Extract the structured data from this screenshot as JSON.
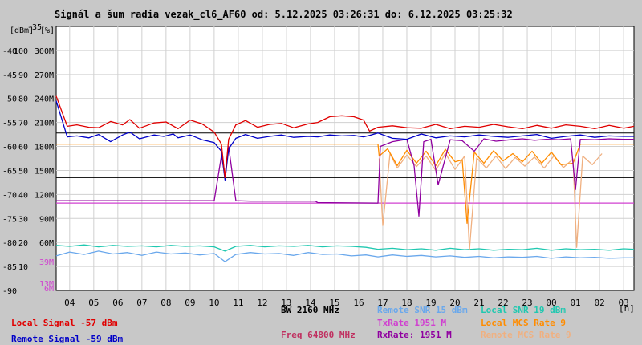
{
  "chart_data": {
    "type": "line",
    "title": "Signál a šum radia vezak_cl6_AF60 od: 5.12.2025 03:26:31 do: 6.12.2025 03:25:32",
    "axis_units_dbm": "[dBm]",
    "axis_units_pct": "[%]",
    "x_unit": "[h]",
    "ylim_dbm": [
      -90,
      -35
    ],
    "y_dbm_ticks": [
      -35,
      -40,
      -45,
      -50,
      -55,
      -60,
      -65,
      -70,
      -75,
      -80,
      -85,
      -90
    ],
    "y_pct_ticks": [
      {
        "dbm": -40,
        "label": "100"
      },
      {
        "dbm": -45,
        "label": "90"
      },
      {
        "dbm": -50,
        "label": "80"
      },
      {
        "dbm": -55,
        "label": "70"
      },
      {
        "dbm": -60,
        "label": "60"
      },
      {
        "dbm": -65,
        "label": "50"
      },
      {
        "dbm": -70,
        "label": "40"
      },
      {
        "dbm": -75,
        "label": "30"
      },
      {
        "dbm": -80,
        "label": "20"
      },
      {
        "dbm": -85,
        "label": "10"
      }
    ],
    "y_rate_ticks": [
      {
        "dbm": -40,
        "label": "300M"
      },
      {
        "dbm": -45,
        "label": "270M"
      },
      {
        "dbm": -50,
        "label": "240M"
      },
      {
        "dbm": -55,
        "label": "210M"
      },
      {
        "dbm": -60,
        "label": "180M"
      },
      {
        "dbm": -65,
        "label": "150M"
      },
      {
        "dbm": -70,
        "label": "120M"
      },
      {
        "dbm": -75,
        "label": "90M"
      },
      {
        "dbm": -80,
        "label": "60M"
      }
    ],
    "y_extra_ticks": [
      {
        "dbm": -84,
        "label": "39M",
        "color": "#d040d0"
      },
      {
        "dbm": -88.5,
        "label": "13M",
        "color": "#d040d0"
      },
      {
        "dbm": -89.5,
        "label": "6M",
        "color": "#d040d0"
      }
    ],
    "xlim_hours": [
      3.44,
      27.43
    ],
    "x_ticks": [
      {
        "h": 4,
        "label": "04"
      },
      {
        "h": 5,
        "label": "05"
      },
      {
        "h": 6,
        "label": "06"
      },
      {
        "h": 7,
        "label": "07"
      },
      {
        "h": 8,
        "label": "08"
      },
      {
        "h": 9,
        "label": "09"
      },
      {
        "h": 10,
        "label": "10"
      },
      {
        "h": 11,
        "label": "11"
      },
      {
        "h": 12,
        "label": "12"
      },
      {
        "h": 13,
        "label": "13"
      },
      {
        "h": 14,
        "label": "14"
      },
      {
        "h": 15,
        "label": "15"
      },
      {
        "h": 16,
        "label": "16"
      },
      {
        "h": 17,
        "label": "17"
      },
      {
        "h": 18,
        "label": "18"
      },
      {
        "h": 19,
        "label": "19"
      },
      {
        "h": 20,
        "label": "20"
      },
      {
        "h": 21,
        "label": "21"
      },
      {
        "h": 22,
        "label": "22"
      },
      {
        "h": 23,
        "label": "23"
      },
      {
        "h": 24,
        "label": "00"
      },
      {
        "h": 25,
        "label": "01"
      },
      {
        "h": 26,
        "label": "02"
      },
      {
        "h": 27,
        "label": "03"
      }
    ],
    "reference_lines_dbm": [
      -57.2,
      -66.5
    ],
    "series": [
      {
        "name": "Local Signal",
        "color": "#e00000",
        "x": [
          3.44,
          3.9,
          4.3,
          4.8,
          5.2,
          5.7,
          6.2,
          6.5,
          6.9,
          7.5,
          8.0,
          8.5,
          9.0,
          9.5,
          10.0,
          10.3,
          10.45,
          10.6,
          10.9,
          11.3,
          11.8,
          12.3,
          12.8,
          13.3,
          13.9,
          14.3,
          14.8,
          15.3,
          15.8,
          16.2,
          16.45,
          16.8,
          17.4,
          18.0,
          18.6,
          19.2,
          19.8,
          20.4,
          21.0,
          21.6,
          22.2,
          22.8,
          23.4,
          24.0,
          24.6,
          25.2,
          25.8,
          26.4,
          27.0,
          27.43
        ],
        "values": [
          -49.5,
          -55.8,
          -55.5,
          -56.0,
          -56.1,
          -54.8,
          -55.5,
          -54.4,
          -56.2,
          -55.1,
          -54.9,
          -56.3,
          -54.5,
          -55.3,
          -57.0,
          -59.5,
          -66.5,
          -58.5,
          -55.5,
          -54.6,
          -56.0,
          -55.4,
          -55.2,
          -56.1,
          -55.3,
          -55.0,
          -53.8,
          -53.6,
          -53.8,
          -54.5,
          -56.8,
          -56.0,
          -55.7,
          -56.1,
          -56.2,
          -55.4,
          -56.3,
          -55.8,
          -56.0,
          -55.4,
          -55.9,
          -56.3,
          -55.6,
          -56.2,
          -55.5,
          -55.8,
          -56.3,
          -55.6,
          -56.2,
          -55.8
        ]
      },
      {
        "name": "Remote Signal",
        "color": "#0000c8",
        "x": [
          3.44,
          3.9,
          4.3,
          4.8,
          5.2,
          5.7,
          6.2,
          6.5,
          6.9,
          7.5,
          7.9,
          8.3,
          8.5,
          9.0,
          9.5,
          10.0,
          10.3,
          10.45,
          10.6,
          10.9,
          11.3,
          11.8,
          12.3,
          12.8,
          13.3,
          13.9,
          14.3,
          14.8,
          15.3,
          15.8,
          16.2,
          16.45,
          16.8,
          17.4,
          18.0,
          18.6,
          19.2,
          19.8,
          20.4,
          21.0,
          21.6,
          22.2,
          22.8,
          23.4,
          24.0,
          24.6,
          25.2,
          25.8,
          26.4,
          27.0,
          27.43
        ],
        "values": [
          -50.5,
          -58.0,
          -57.8,
          -58.2,
          -57.5,
          -59.0,
          -57.6,
          -57.0,
          -58.4,
          -57.6,
          -57.9,
          -57.4,
          -58.2,
          -57.6,
          -58.6,
          -59.2,
          -61.0,
          -67.0,
          -60.5,
          -58.3,
          -57.5,
          -58.3,
          -57.9,
          -57.6,
          -58.1,
          -57.9,
          -58.0,
          -57.6,
          -57.8,
          -57.7,
          -58.0,
          -57.7,
          -57.2,
          -58.3,
          -58.5,
          -57.4,
          -58.2,
          -57.8,
          -58.0,
          -57.6,
          -57.9,
          -58.1,
          -57.8,
          -57.5,
          -58.3,
          -57.9,
          -57.6,
          -58.1,
          -57.8,
          -57.9,
          -57.9
        ]
      },
      {
        "name": "Remote SNR",
        "color": "#6aa8ec",
        "x": [
          3.44,
          4.0,
          4.6,
          5.2,
          5.8,
          6.4,
          7.0,
          7.6,
          8.2,
          8.8,
          9.4,
          10.0,
          10.45,
          10.9,
          11.5,
          12.1,
          12.7,
          13.3,
          13.9,
          14.5,
          15.1,
          15.7,
          16.3,
          16.8,
          17.4,
          18.0,
          18.6,
          19.2,
          19.8,
          20.4,
          21.0,
          21.6,
          22.2,
          22.8,
          23.4,
          24.0,
          24.6,
          25.2,
          25.8,
          26.4,
          27.0,
          27.43
        ],
        "values": [
          -82.8,
          -82.0,
          -82.5,
          -81.8,
          -82.4,
          -82.1,
          -82.7,
          -82.0,
          -82.4,
          -82.2,
          -82.6,
          -82.3,
          -84.0,
          -82.5,
          -82.1,
          -82.4,
          -82.3,
          -82.7,
          -82.1,
          -82.5,
          -82.4,
          -82.8,
          -82.6,
          -83.0,
          -82.6,
          -82.9,
          -82.7,
          -83.0,
          -82.8,
          -83.1,
          -82.9,
          -83.2,
          -83.0,
          -83.1,
          -82.9,
          -83.3,
          -83.0,
          -83.2,
          -83.1,
          -83.3,
          -83.2,
          -83.2
        ]
      },
      {
        "name": "Local SNR",
        "color": "#20c8b0",
        "x": [
          3.44,
          4.0,
          4.6,
          5.2,
          5.8,
          6.4,
          7.0,
          7.6,
          8.2,
          8.8,
          9.4,
          10.0,
          10.45,
          10.9,
          11.5,
          12.1,
          12.7,
          13.3,
          13.9,
          14.5,
          15.1,
          15.7,
          16.3,
          16.8,
          17.4,
          18.0,
          18.6,
          19.2,
          19.8,
          20.4,
          21.0,
          21.6,
          22.2,
          22.8,
          23.4,
          24.0,
          24.6,
          25.2,
          25.8,
          26.4,
          27.0,
          27.43
        ],
        "values": [
          -80.6,
          -80.8,
          -80.5,
          -80.9,
          -80.6,
          -80.8,
          -80.7,
          -80.9,
          -80.6,
          -80.8,
          -80.7,
          -80.9,
          -81.8,
          -80.8,
          -80.6,
          -80.9,
          -80.7,
          -80.8,
          -80.6,
          -80.9,
          -80.7,
          -80.8,
          -81.0,
          -81.4,
          -81.2,
          -81.5,
          -81.3,
          -81.6,
          -81.2,
          -81.5,
          -81.3,
          -81.6,
          -81.4,
          -81.5,
          -81.2,
          -81.6,
          -81.3,
          -81.5,
          -81.4,
          -81.6,
          -81.3,
          -81.4
        ]
      },
      {
        "name": "TxRate",
        "color": "#d040d0",
        "x": [
          3.44,
          16.8,
          16.9,
          27.43
        ],
        "values": [
          -71.8,
          -71.8,
          -71.8,
          -71.8
        ]
      },
      {
        "name": "RxRate",
        "color": "#9000a0",
        "x": [
          3.44,
          9.0,
          10.0,
          10.3,
          10.45,
          10.6,
          10.9,
          11.5,
          14.2,
          14.3,
          16.8,
          16.9,
          17.4,
          18.0,
          18.3,
          18.5,
          18.7,
          19.0,
          19.3,
          19.8,
          20.3,
          20.8,
          21.2,
          21.7,
          22.3,
          22.8,
          23.3,
          23.8,
          24.3,
          24.8,
          25.0,
          25.2,
          25.8,
          26.4,
          27.0,
          27.43
        ],
        "values": [
          -71.3,
          -71.3,
          -71.3,
          -62.0,
          -66.0,
          -60.0,
          -71.3,
          -71.4,
          -71.4,
          -71.7,
          -71.8,
          -60.0,
          -59.0,
          -58.5,
          -64.0,
          -74.5,
          -59.0,
          -58.5,
          -68.0,
          -58.6,
          -58.8,
          -61.0,
          -58.4,
          -58.9,
          -58.6,
          -58.4,
          -58.7,
          -58.5,
          -58.6,
          -58.4,
          -69.0,
          -58.5,
          -58.6,
          -58.4,
          -58.5,
          -58.5
        ]
      },
      {
        "name": "Local MCS Rate",
        "color": "#ff8c00",
        "x": [
          3.44,
          16.8,
          16.85,
          17.2,
          17.6,
          18.0,
          18.4,
          18.8,
          19.2,
          19.6,
          20.0,
          20.3,
          20.5,
          20.8,
          21.2,
          21.6,
          22.0,
          22.4,
          22.8,
          23.2,
          23.6,
          24.0,
          24.4,
          24.9,
          25.2,
          25.8,
          26.4,
          27.0,
          27.43
        ],
        "values": [
          -59.5,
          -59.5,
          -62.0,
          -60.5,
          -64.0,
          -60.8,
          -63.5,
          -61.0,
          -64.0,
          -60.6,
          -63.2,
          -62.8,
          -76.0,
          -61.2,
          -63.5,
          -60.9,
          -63.0,
          -61.5,
          -63.2,
          -61.0,
          -63.5,
          -61.2,
          -63.8,
          -63.5,
          -59.5,
          -59.5,
          -59.5,
          -59.5,
          -59.5
        ]
      },
      {
        "name": "Remote MCS Rate",
        "color": "#f0b080",
        "x": [
          16.85,
          17.0,
          17.3,
          17.6,
          18.0,
          18.4,
          18.8,
          19.2,
          19.6,
          20.0,
          20.4,
          20.6,
          20.9,
          21.3,
          21.7,
          22.1,
          22.5,
          22.9,
          23.3,
          23.7,
          24.1,
          24.5,
          24.9,
          25.05,
          25.3,
          25.7,
          26.1
        ],
        "values": [
          -62.5,
          -76.5,
          -61.5,
          -64.5,
          -61.8,
          -64.2,
          -62.0,
          -65.0,
          -61.4,
          -64.8,
          -62.0,
          -81.5,
          -62.4,
          -64.5,
          -62.0,
          -64.6,
          -62.3,
          -64.1,
          -62.2,
          -64.5,
          -62.0,
          -64.4,
          -62.6,
          -81.0,
          -62.0,
          -63.8,
          -61.5
        ]
      }
    ]
  },
  "legend": {
    "bw": "BW 2160 MHz",
    "freq": "Freq 64800 MHz",
    "local_signal": "Local Signal -57 dBm",
    "remote_signal": "Remote Signal -59 dBm",
    "remote_snr": "Remote SNR 15 dBm",
    "local_snr": "Local SNR 19 dBm",
    "tx_rate": "TxRate 1951 M",
    "local_mcs": "Local MCS Rate 9",
    "rx_rate": "RxRate: 1951 M",
    "remote_mcs": "Remote MCS Rate 9"
  },
  "colors": {
    "background": "#c8c8c8",
    "plot_background": "#ffffff",
    "grid": "#d0d0d0"
  }
}
